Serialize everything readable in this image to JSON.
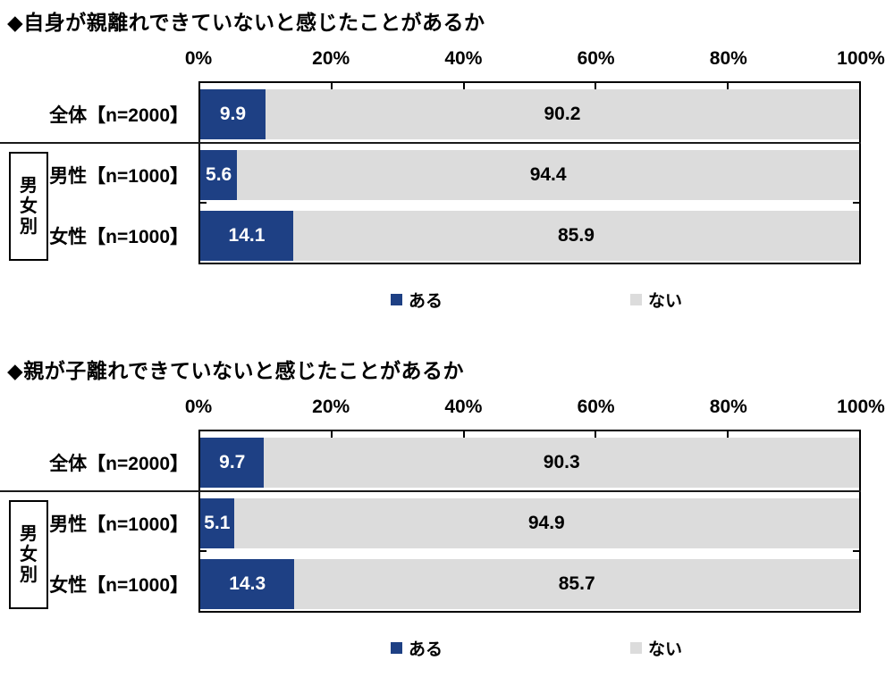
{
  "colors": {
    "bar_yes": "#1e4084",
    "bar_no": "#dcdcdc",
    "text": "#000000",
    "border": "#000000",
    "background": "#ffffff"
  },
  "chart_data": [
    {
      "type": "bar",
      "orientation": "horizontal",
      "stacked": true,
      "title": "◆自身が親離れできていないと感じたことがあるか",
      "group_label": "男女別",
      "x_axis": {
        "ticks": [
          "0%",
          "20%",
          "40%",
          "60%",
          "80%",
          "100%"
        ],
        "range": [
          0,
          100
        ],
        "grid": false
      },
      "categories": [
        "全体【n=2000】",
        "男性【n=1000】",
        "女性【n=1000】"
      ],
      "series": [
        {
          "name": "ある",
          "color": "#1e4084",
          "values": [
            9.9,
            5.6,
            14.1
          ]
        },
        {
          "name": "ない",
          "color": "#dcdcdc",
          "values": [
            90.2,
            94.4,
            85.9
          ]
        }
      ],
      "legend": {
        "position": "bottom",
        "labels": [
          "ある",
          "ない"
        ]
      }
    },
    {
      "type": "bar",
      "orientation": "horizontal",
      "stacked": true,
      "title": "◆親が子離れできていないと感じたことがあるか",
      "group_label": "男女別",
      "x_axis": {
        "ticks": [
          "0%",
          "20%",
          "40%",
          "60%",
          "80%",
          "100%"
        ],
        "range": [
          0,
          100
        ],
        "grid": false
      },
      "categories": [
        "全体【n=2000】",
        "男性【n=1000】",
        "女性【n=1000】"
      ],
      "series": [
        {
          "name": "ある",
          "color": "#1e4084",
          "values": [
            9.7,
            5.1,
            14.3
          ]
        },
        {
          "name": "ない",
          "color": "#dcdcdc",
          "values": [
            90.3,
            94.9,
            85.7
          ]
        }
      ],
      "legend": {
        "position": "bottom",
        "labels": [
          "ある",
          "ない"
        ]
      }
    }
  ]
}
